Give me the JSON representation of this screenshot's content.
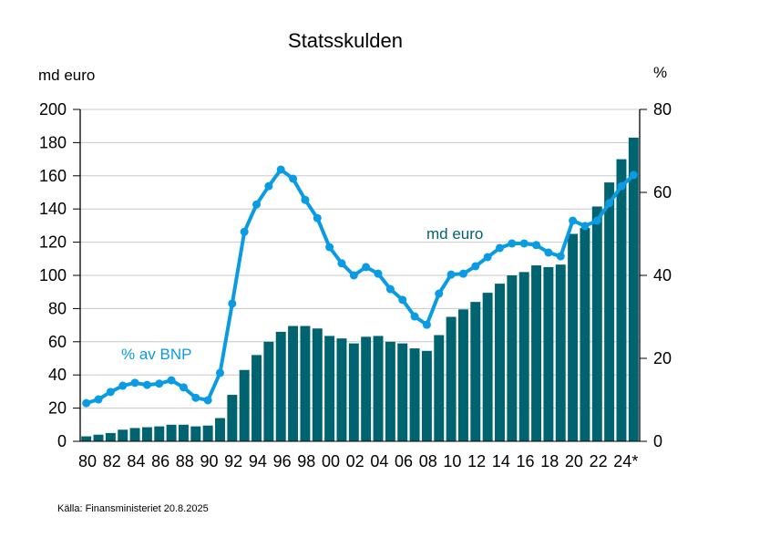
{
  "chart_data": {
    "type": "bar+line",
    "title": "Statsskulden",
    "left_axis": {
      "unit_label": "md euro",
      "ylim": [
        0,
        200
      ],
      "ticks": [
        0,
        20,
        40,
        60,
        80,
        100,
        120,
        140,
        160,
        180,
        200
      ],
      "tick_labels": [
        "0",
        "20",
        "40",
        "60",
        "80",
        "100",
        "120",
        "140",
        "160",
        "180",
        "200"
      ]
    },
    "right_axis": {
      "unit_label": "%",
      "ylim": [
        0,
        80
      ],
      "ticks": [
        0,
        20,
        40,
        60,
        80
      ],
      "tick_labels": [
        "0",
        "20",
        "40",
        "60",
        "80"
      ]
    },
    "grid": true,
    "x": [
      1980,
      1981,
      1982,
      1983,
      1984,
      1985,
      1986,
      1987,
      1988,
      1989,
      1990,
      1991,
      1992,
      1993,
      1994,
      1995,
      1996,
      1997,
      1998,
      1999,
      2000,
      2001,
      2002,
      2003,
      2004,
      2005,
      2006,
      2007,
      2008,
      2009,
      2010,
      2011,
      2012,
      2013,
      2014,
      2015,
      2016,
      2017,
      2018,
      2019,
      2020,
      2021,
      2022,
      2023,
      2024,
      2025
    ],
    "x_tick_labels": [
      "80",
      "82",
      "84",
      "86",
      "88",
      "90",
      "92",
      "94",
      "96",
      "98",
      "00",
      "02",
      "04",
      "06",
      "08",
      "10",
      "12",
      "14",
      "16",
      "18",
      "20",
      "22",
      "24*"
    ],
    "series": [
      {
        "name": "md euro",
        "type": "bar",
        "axis": "left",
        "color": "#006470",
        "label_color": "#006470",
        "values": [
          3,
          4,
          5,
          7,
          8,
          8.5,
          9,
          10,
          10,
          9,
          9.5,
          14,
          28,
          43,
          52,
          60,
          66,
          69.5,
          69.5,
          68,
          63.5,
          62,
          59,
          63,
          63.5,
          60,
          59,
          56,
          54.5,
          64,
          75,
          79.5,
          84,
          89.5,
          95,
          100,
          102,
          106,
          105,
          106.5,
          125,
          128.5,
          141.5,
          156,
          170,
          183
        ]
      },
      {
        "name": "% av BNP",
        "type": "line",
        "axis": "right",
        "color": "#0A9BE3",
        "label_color": "#0A9BE3",
        "values": [
          9.2,
          10.1,
          11.9,
          13.4,
          14.1,
          13.6,
          13.9,
          14.7,
          13.0,
          10.5,
          9.9,
          16.5,
          33.2,
          50.5,
          57.1,
          61.5,
          65.5,
          63.3,
          58.2,
          53.8,
          46.8,
          42.9,
          40.0,
          42.0,
          40.4,
          36.7,
          34.1,
          30.1,
          28.1,
          35.6,
          40.2,
          40.4,
          42.2,
          44.4,
          46.6,
          47.7,
          47.7,
          47.3,
          45.5,
          44.6,
          53.2,
          51.9,
          53.2,
          57.4,
          61.5,
          64.2
        ]
      }
    ],
    "annotations": [
      "% av BNP",
      "md euro"
    ],
    "source": "Källa: Finansministeriet 20.8.2025"
  }
}
